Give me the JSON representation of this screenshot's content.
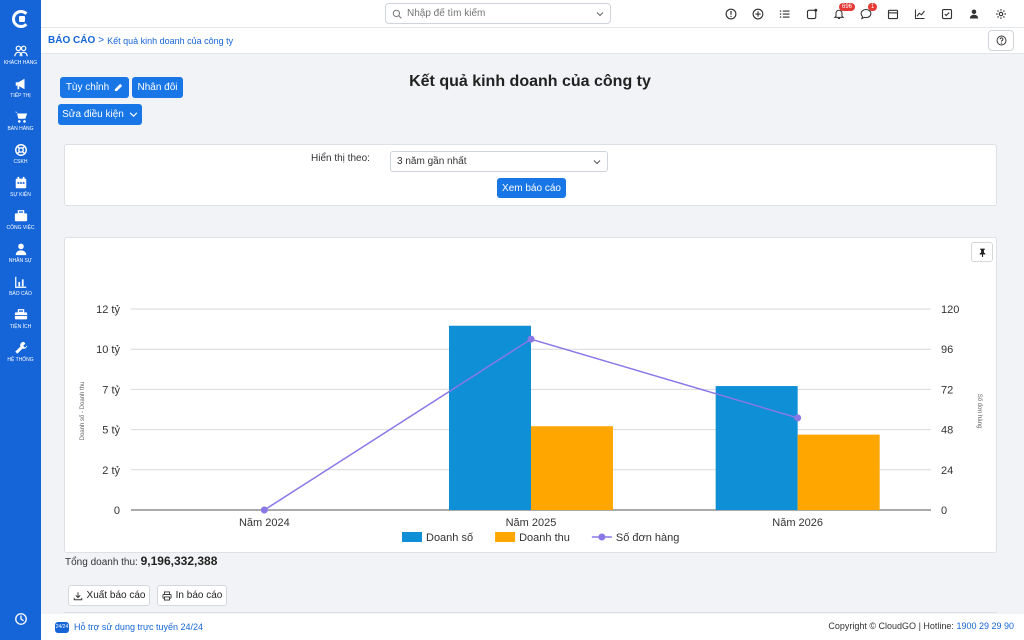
{
  "sidebar": {
    "items": [
      {
        "label": "KHÁCH HÀNG",
        "icon": "users-icon"
      },
      {
        "label": "TIẾP THỊ",
        "icon": "megaphone-icon"
      },
      {
        "label": "BÁN HÀNG",
        "icon": "cart-icon"
      },
      {
        "label": "CSKH",
        "icon": "lifebuoy-icon"
      },
      {
        "label": "SỰ KIỆN",
        "icon": "calendar-icon"
      },
      {
        "label": "CÔNG VIỆC",
        "icon": "briefcase-icon"
      },
      {
        "label": "NHÂN SỰ",
        "icon": "person-icon"
      },
      {
        "label": "BÁO CÁO",
        "icon": "report-icon"
      },
      {
        "label": "TIỆN ÍCH",
        "icon": "toolbox-icon"
      },
      {
        "label": "HỆ THỐNG",
        "icon": "wrench-icon"
      }
    ]
  },
  "search": {
    "placeholder": "Nhập để tìm kiếm"
  },
  "topbar": {
    "notifications_count": "696",
    "messages_count": "1"
  },
  "breadcrumb": {
    "root": "BÁO CÁO",
    "separator": ">",
    "current": "Kết quả kinh doanh của công ty"
  },
  "toolbar": {
    "customize_label": "Tùy chỉnh",
    "duplicate_label": "Nhân đôi",
    "edit_conditions_label": "Sửa điều kiện"
  },
  "page": {
    "title": "Kết quả kinh doanh của công ty"
  },
  "filter": {
    "label": "Hiển thị theo:",
    "selected": "3 năm gần nhất",
    "submit_label": "Xem báo cáo"
  },
  "chart_data": {
    "type": "bar",
    "categories": [
      "Năm 2024",
      "Năm 2025",
      "Năm 2026"
    ],
    "series": [
      {
        "name": "Doanh số",
        "type": "bar",
        "axis": "left",
        "color": "#0e8fd6",
        "values": [
          0,
          11,
          7.4
        ]
      },
      {
        "name": "Doanh thu",
        "type": "bar",
        "axis": "left",
        "color": "#ffa600",
        "values": [
          0,
          5,
          4.5
        ]
      },
      {
        "name": "Số đơn hàng",
        "type": "line",
        "axis": "right",
        "color": "#8878e6",
        "values": [
          0,
          102,
          55
        ]
      }
    ],
    "ylabel": "Doanh số - Doanh thu",
    "y2label": "Số đơn hàng",
    "ylim": [
      0,
      12
    ],
    "y2lim": [
      0,
      120
    ],
    "yticks": [
      {
        "value": 0,
        "label": "0"
      },
      {
        "value": 2.4,
        "label": "2 tỷ"
      },
      {
        "value": 4.8,
        "label": "5 tỷ"
      },
      {
        "value": 7.2,
        "label": "7 tỷ"
      },
      {
        "value": 9.6,
        "label": "10 tỷ"
      },
      {
        "value": 12,
        "label": "12 tỷ"
      }
    ],
    "y2ticks": [
      0,
      24,
      48,
      72,
      96,
      120
    ],
    "grid": true,
    "legend": "bottom"
  },
  "summary": {
    "total_label": "Tổng doanh thu:",
    "total_value": "9,196,332,388"
  },
  "actions": {
    "export_label": "Xuất báo cáo",
    "print_label": "In báo cáo"
  },
  "footer": {
    "support_chip": "24/24",
    "support_text": "Hỗ trợ sử dụng trực tuyến 24/24",
    "copyright": "Copyright © CloudGO",
    "hotline_label": "Hotline:",
    "hotline_number": "1900 29 29 90"
  }
}
